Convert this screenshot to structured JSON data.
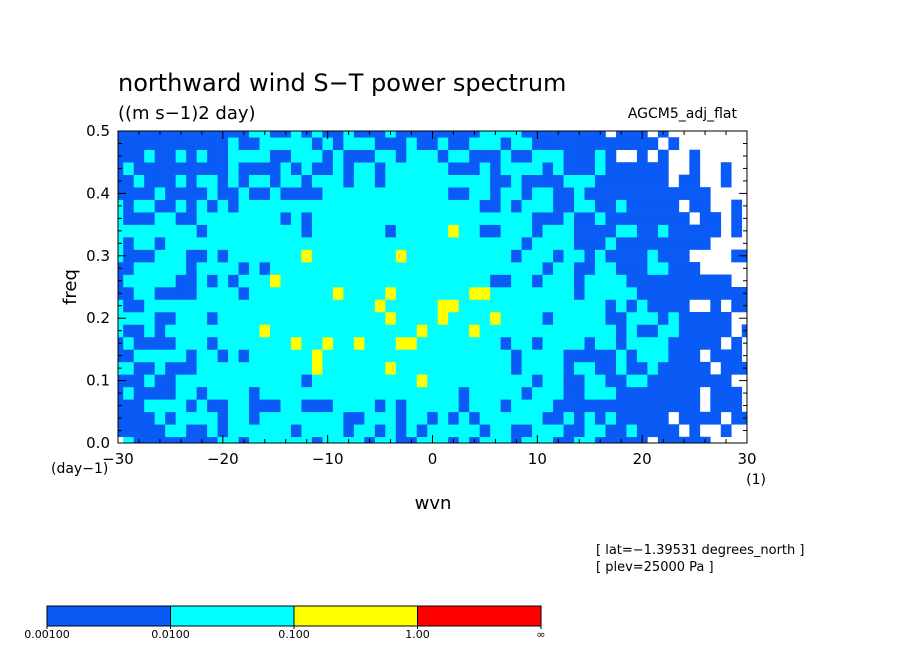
{
  "chart_data": {
    "type": "heatmap",
    "title": "northward wind S−T power spectrum",
    "subtitle": "((m s−1)2 day)",
    "model_label": "AGCM5_adj_flat",
    "xlabel": "wvn",
    "ylabel": "freq",
    "x_unit": "(1)",
    "y_unit": "(day−1)",
    "xlim": [
      -30,
      30
    ],
    "ylim": [
      0,
      0.5
    ],
    "x_ticks": [
      -30,
      -20,
      -10,
      0,
      10,
      20,
      30
    ],
    "x_tick_labels": [
      "−30",
      "−20",
      "−10",
      "0",
      "10",
      "20",
      "30"
    ],
    "y_ticks": [
      0,
      0.1,
      0.2,
      0.3,
      0.4,
      0.5
    ],
    "y_tick_labels": [
      "0.0",
      "0.1",
      "0.2",
      "0.3",
      "0.4",
      "0.5"
    ],
    "info_lines": [
      "[ lat=−1.39531 degrees_north ]",
      "[ plev=25000 Pa ]"
    ],
    "legend": {
      "colors": [
        "#0a5bf5",
        "#00ffff",
        "#ffff00",
        "#ff0000"
      ],
      "boundaries": [
        "0.00100",
        "0.0100",
        "0.100",
        "1.00",
        "∞"
      ]
    },
    "level_thresholds": [
      0.001,
      0.01,
      0.1,
      1.0
    ],
    "grid_wavenumbers": [
      -30,
      -29,
      -28,
      -27,
      -26,
      -25,
      -24,
      -23,
      -22,
      -21,
      -20,
      -19,
      -18,
      -17,
      -16,
      -15,
      -14,
      -13,
      -12,
      -11,
      -10,
      -9,
      -8,
      -7,
      -6,
      -5,
      -4,
      -3,
      -2,
      -1,
      0,
      1,
      2,
      3,
      4,
      5,
      6,
      7,
      8,
      9,
      10,
      11,
      12,
      13,
      14,
      15,
      16,
      17,
      18,
      19,
      20,
      21,
      22,
      23,
      24,
      25,
      26,
      27,
      28,
      29,
      30
    ],
    "grid_frequencies": [
      0.0,
      0.02,
      0.04,
      0.06,
      0.08,
      0.1,
      0.12,
      0.14,
      0.16,
      0.18,
      0.2,
      0.22,
      0.24,
      0.26,
      0.28,
      0.3,
      0.32,
      0.34,
      0.36,
      0.38,
      0.4,
      0.42,
      0.44,
      0.46,
      0.48,
      0.5
    ],
    "power_field_note": "Log10 power is approximated by a centred maximum near wvn −5, freq 0.22, with a noisy band structure; values are estimated from the contour colors."
  }
}
